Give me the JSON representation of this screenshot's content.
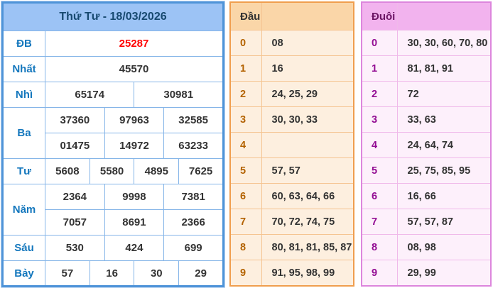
{
  "results_table": {
    "title": "Thứ Tư - 18/03/2026",
    "rows": [
      {
        "label": "ĐB",
        "special": true,
        "groups": [
          [
            "25287"
          ]
        ]
      },
      {
        "label": "Nhất",
        "special": false,
        "groups": [
          [
            "45570"
          ]
        ]
      },
      {
        "label": "Nhì",
        "special": false,
        "groups": [
          [
            "65174",
            "30981"
          ]
        ]
      },
      {
        "label": "Ba",
        "special": false,
        "groups": [
          [
            "37360",
            "97963",
            "32585"
          ],
          [
            "01475",
            "14972",
            "63233"
          ]
        ]
      },
      {
        "label": "Tư",
        "special": false,
        "groups": [
          [
            "5608",
            "5580",
            "4895",
            "7625"
          ]
        ]
      },
      {
        "label": "Năm",
        "special": false,
        "groups": [
          [
            "2364",
            "9998",
            "7381"
          ],
          [
            "7057",
            "8691",
            "2366"
          ]
        ]
      },
      {
        "label": "Sáu",
        "special": false,
        "groups": [
          [
            "530",
            "424",
            "699"
          ]
        ]
      },
      {
        "label": "Bảy",
        "special": false,
        "groups": [
          [
            "57",
            "16",
            "30",
            "29"
          ]
        ]
      }
    ]
  },
  "dau_table": {
    "title": "Đầu",
    "rows": [
      {
        "digit": "0",
        "values": "08"
      },
      {
        "digit": "1",
        "values": "16"
      },
      {
        "digit": "2",
        "values": "24, 25, 29"
      },
      {
        "digit": "3",
        "values": "30, 30, 33"
      },
      {
        "digit": "4",
        "values": ""
      },
      {
        "digit": "5",
        "values": "57, 57"
      },
      {
        "digit": "6",
        "values": "60, 63, 64, 66"
      },
      {
        "digit": "7",
        "values": "70, 72, 74, 75"
      },
      {
        "digit": "8",
        "values": "80, 81, 81, 85, 87"
      },
      {
        "digit": "9",
        "values": "91, 95, 98, 99"
      }
    ]
  },
  "duoi_table": {
    "title": "Đuôi",
    "rows": [
      {
        "digit": "0",
        "values": "30, 30, 60, 70, 80"
      },
      {
        "digit": "1",
        "values": "81, 81, 91"
      },
      {
        "digit": "2",
        "values": "72"
      },
      {
        "digit": "3",
        "values": "33, 63"
      },
      {
        "digit": "4",
        "values": "24, 64, 74"
      },
      {
        "digit": "5",
        "values": "25, 75, 85, 95"
      },
      {
        "digit": "6",
        "values": "16, 66"
      },
      {
        "digit": "7",
        "values": "57, 57, 87"
      },
      {
        "digit": "8",
        "values": "08, 98"
      },
      {
        "digit": "9",
        "values": "29, 99"
      }
    ]
  },
  "colors": {
    "result_border": "#4f94d8",
    "result_header_bg": "#9cc3f5",
    "result_title_text": "#17496f",
    "result_label_text": "#1477bd",
    "value_text": "#333333",
    "special_prize_text": "#ff0000",
    "dau_border": "#f09e4e",
    "dau_header_bg": "#fad6a8",
    "dau_row_bg": "#fdefdf",
    "dau_digit_text": "#b36200",
    "duoi_border": "#dd86dd",
    "duoi_header_bg": "#f2b3ee",
    "duoi_row_bg": "#fdf0fb",
    "duoi_digit_text": "#930d93"
  }
}
